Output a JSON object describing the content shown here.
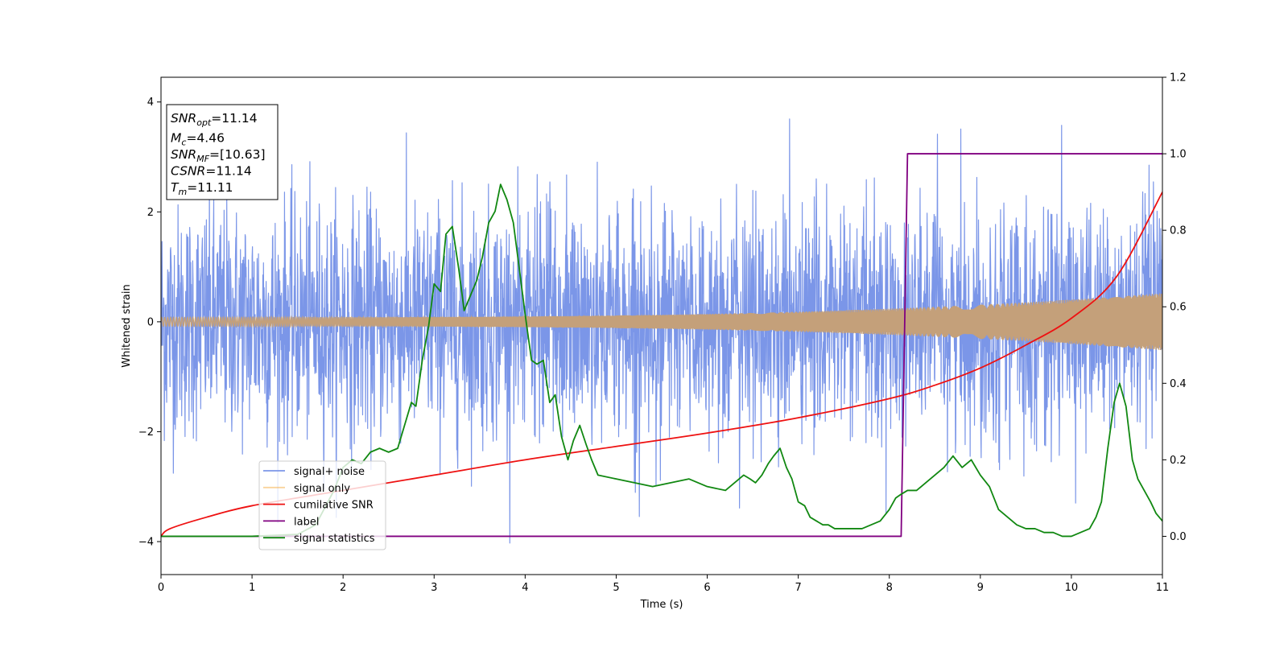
{
  "chart_data": {
    "type": "line",
    "title": "",
    "xlabel": "Time (s)",
    "ylabel": "Whitened strain",
    "xlim": [
      0,
      11
    ],
    "ylim_left": [
      -4.6,
      4.45
    ],
    "ylim_right": [
      -0.1,
      1.2
    ],
    "x_ticks": [
      0,
      1,
      2,
      3,
      4,
      5,
      6,
      7,
      8,
      9,
      10,
      11
    ],
    "y_ticks_left": [
      -4,
      -2,
      0,
      2,
      4
    ],
    "y_ticks_right": [
      0.0,
      0.2,
      0.4,
      0.6,
      0.8,
      1.0,
      1.2
    ],
    "y_tick_labels_right": [
      "0.0",
      "0.2",
      "0.4",
      "0.6",
      "0.8",
      "1.0",
      "1.2"
    ],
    "grid": false,
    "legend_position": "lower-left",
    "annotation": {
      "lines": [
        {
          "sym": "SNR",
          "sub": "opt",
          "value": "=11.14"
        },
        {
          "sym": "M",
          "sub": "c",
          "value": "=4.46"
        },
        {
          "sym": "SNR",
          "sub": "MF",
          "value": "=[10.63]"
        },
        {
          "sym": "CSNR",
          "sub": "",
          "value": "=11.14"
        },
        {
          "sym": "T",
          "sub": "m",
          "value": "=11.11"
        }
      ]
    },
    "series": [
      {
        "name": "signal+ noise",
        "axis": "left",
        "color": "#7b96e8",
        "kind": "noise",
        "approx_range": [
          -4.15,
          4.05
        ]
      },
      {
        "name": "signal only",
        "axis": "left",
        "color": "#c4a07a",
        "kind": "chirp",
        "amplitude_start": 0.08,
        "amplitude_end": 0.52
      },
      {
        "name": "cumilative SNR",
        "axis": "right",
        "color": "#ee1111",
        "x": [
          0,
          0.1,
          0.5,
          1,
          2,
          3,
          4,
          5,
          6,
          7,
          8,
          8.5,
          9,
          9.5,
          10,
          10.5,
          11
        ],
        "y": [
          0.0,
          0.02,
          0.05,
          0.08,
          0.12,
          0.16,
          0.2,
          0.235,
          0.27,
          0.31,
          0.36,
          0.395,
          0.44,
          0.5,
          0.57,
          0.68,
          0.9
        ]
      },
      {
        "name": "label",
        "axis": "right",
        "color": "#800080",
        "x": [
          0,
          8.13,
          8.2,
          11
        ],
        "y": [
          0.0,
          0.0,
          1.0,
          1.0
        ]
      },
      {
        "name": "signal statistics",
        "axis": "right",
        "color": "#118811",
        "x": [
          0,
          1.0,
          1.5,
          1.7,
          1.9,
          2.0,
          2.1,
          2.2,
          2.3,
          2.4,
          2.5,
          2.6,
          2.7,
          2.75,
          2.8,
          2.87,
          2.94,
          3.0,
          3.07,
          3.13,
          3.2,
          3.27,
          3.33,
          3.4,
          3.47,
          3.53,
          3.6,
          3.67,
          3.73,
          3.8,
          3.87,
          3.93,
          4.0,
          4.07,
          4.13,
          4.2,
          4.27,
          4.33,
          4.4,
          4.47,
          4.53,
          4.6,
          4.67,
          4.73,
          4.8,
          5.0,
          5.2,
          5.4,
          5.6,
          5.8,
          6.0,
          6.2,
          6.3,
          6.4,
          6.47,
          6.53,
          6.6,
          6.67,
          6.73,
          6.8,
          6.87,
          6.93,
          7.0,
          7.07,
          7.13,
          7.2,
          7.27,
          7.33,
          7.4,
          7.5,
          7.6,
          7.7,
          7.8,
          7.9,
          8.0,
          8.07,
          8.13,
          8.2,
          8.3,
          8.4,
          8.5,
          8.6,
          8.7,
          8.8,
          8.9,
          9.0,
          9.1,
          9.2,
          9.3,
          9.4,
          9.5,
          9.6,
          9.7,
          9.8,
          9.9,
          10.0,
          10.1,
          10.2,
          10.27,
          10.33,
          10.4,
          10.47,
          10.53,
          10.6,
          10.67,
          10.73,
          10.8,
          10.87,
          10.93,
          11.0
        ],
        "y": [
          0.0,
          0.0,
          0.005,
          0.03,
          0.12,
          0.18,
          0.2,
          0.19,
          0.22,
          0.23,
          0.22,
          0.23,
          0.31,
          0.35,
          0.34,
          0.46,
          0.55,
          0.66,
          0.64,
          0.79,
          0.81,
          0.7,
          0.59,
          0.63,
          0.67,
          0.73,
          0.82,
          0.85,
          0.92,
          0.88,
          0.82,
          0.71,
          0.58,
          0.46,
          0.45,
          0.46,
          0.35,
          0.37,
          0.26,
          0.2,
          0.25,
          0.29,
          0.24,
          0.2,
          0.16,
          0.15,
          0.14,
          0.13,
          0.14,
          0.15,
          0.13,
          0.12,
          0.14,
          0.16,
          0.15,
          0.14,
          0.16,
          0.19,
          0.21,
          0.23,
          0.18,
          0.15,
          0.09,
          0.08,
          0.05,
          0.04,
          0.03,
          0.03,
          0.02,
          0.02,
          0.02,
          0.02,
          0.03,
          0.04,
          0.07,
          0.1,
          0.11,
          0.12,
          0.12,
          0.14,
          0.16,
          0.18,
          0.21,
          0.18,
          0.2,
          0.16,
          0.13,
          0.07,
          0.05,
          0.03,
          0.02,
          0.02,
          0.01,
          0.01,
          0.0,
          0.0,
          0.01,
          0.02,
          0.05,
          0.09,
          0.23,
          0.35,
          0.4,
          0.34,
          0.2,
          0.15,
          0.12,
          0.09,
          0.06,
          0.04
        ]
      }
    ]
  }
}
